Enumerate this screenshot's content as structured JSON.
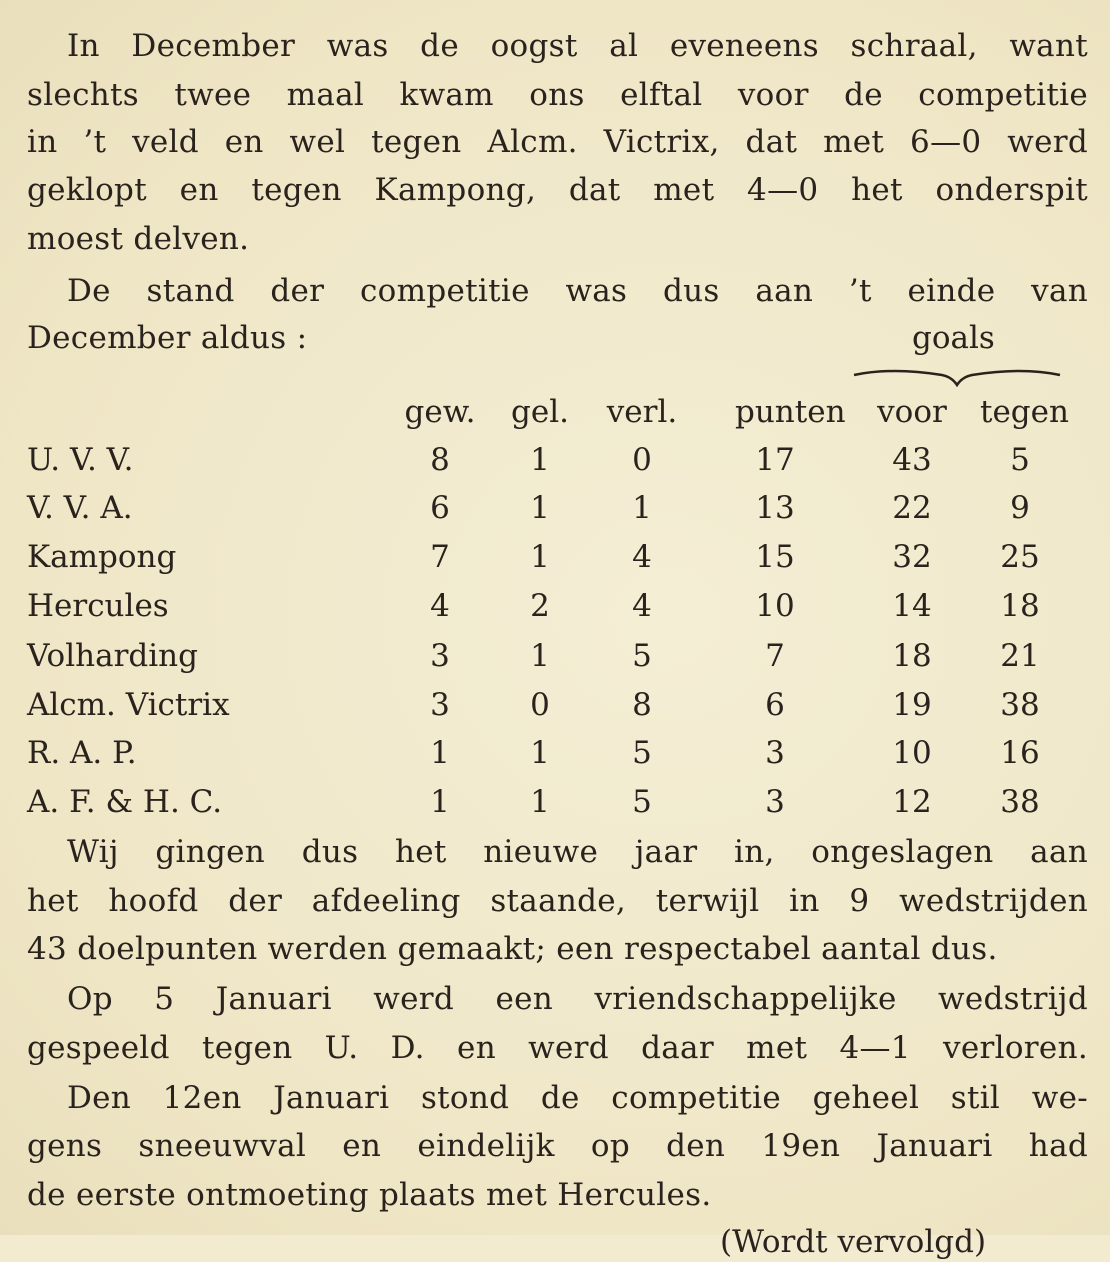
{
  "paragraphs_before": [
    "In December was de oogst al eveneens schraal, want",
    "slechts twee maal kwam ons elftal voor de competitie",
    "in ’t veld en wel tegen Alcm. Victrix, dat met 6—0 werd",
    "geklopt en tegen Kampong, dat met 4—0 het onderspit",
    "moest delven.",
    "De stand der competitie was dus aan ’t einde van",
    "December aldus :"
  ],
  "table": {
    "group_header": "goals",
    "columns": [
      "gew.",
      "gel.",
      "verl.",
      "punten",
      "voor",
      "tegen"
    ],
    "rows": [
      {
        "team": "U. V. V.",
        "values": [
          "8",
          "1",
          "0",
          "17",
          "43",
          "5"
        ]
      },
      {
        "team": "V. V. A.",
        "values": [
          "6",
          "1",
          "1",
          "13",
          "22",
          "9"
        ]
      },
      {
        "team": "Kampong",
        "values": [
          "7",
          "1",
          "4",
          "15",
          "32",
          "25"
        ]
      },
      {
        "team": "Hercules",
        "values": [
          "4",
          "2",
          "4",
          "10",
          "14",
          "18"
        ]
      },
      {
        "team": "Volharding",
        "values": [
          "3",
          "1",
          "5",
          "7",
          "18",
          "21"
        ]
      },
      {
        "team": "Alcm. Victrix",
        "values": [
          "3",
          "0",
          "8",
          "6",
          "19",
          "38"
        ]
      },
      {
        "team": "R. A. P.",
        "values": [
          "1",
          "1",
          "5",
          "3",
          "10",
          "16"
        ]
      },
      {
        "team": "A. F. & H. C.",
        "values": [
          "1",
          "1",
          "5",
          "3",
          "12",
          "38"
        ]
      }
    ]
  },
  "paragraphs_after": [
    "Wij gingen dus het nieuwe jaar in, ongeslagen aan",
    "het hoofd der afdeeling staande, terwijl in 9 wedstrijden",
    "43 doelpunten werden gemaakt; een respectabel aantal dus.",
    "Op 5 Januari werd een vriendschappelijke wedstrijd",
    "gespeeld tegen U. D. en werd daar met 4—1 verloren.",
    "Den 12en Januari stond de competitie geheel stil we-",
    "gens sneeuwval en eindelijk op den 19en Januari had",
    "de eerste ontmoeting plaats met Hercules."
  ],
  "continuation": "(Wordt vervolgd)"
}
